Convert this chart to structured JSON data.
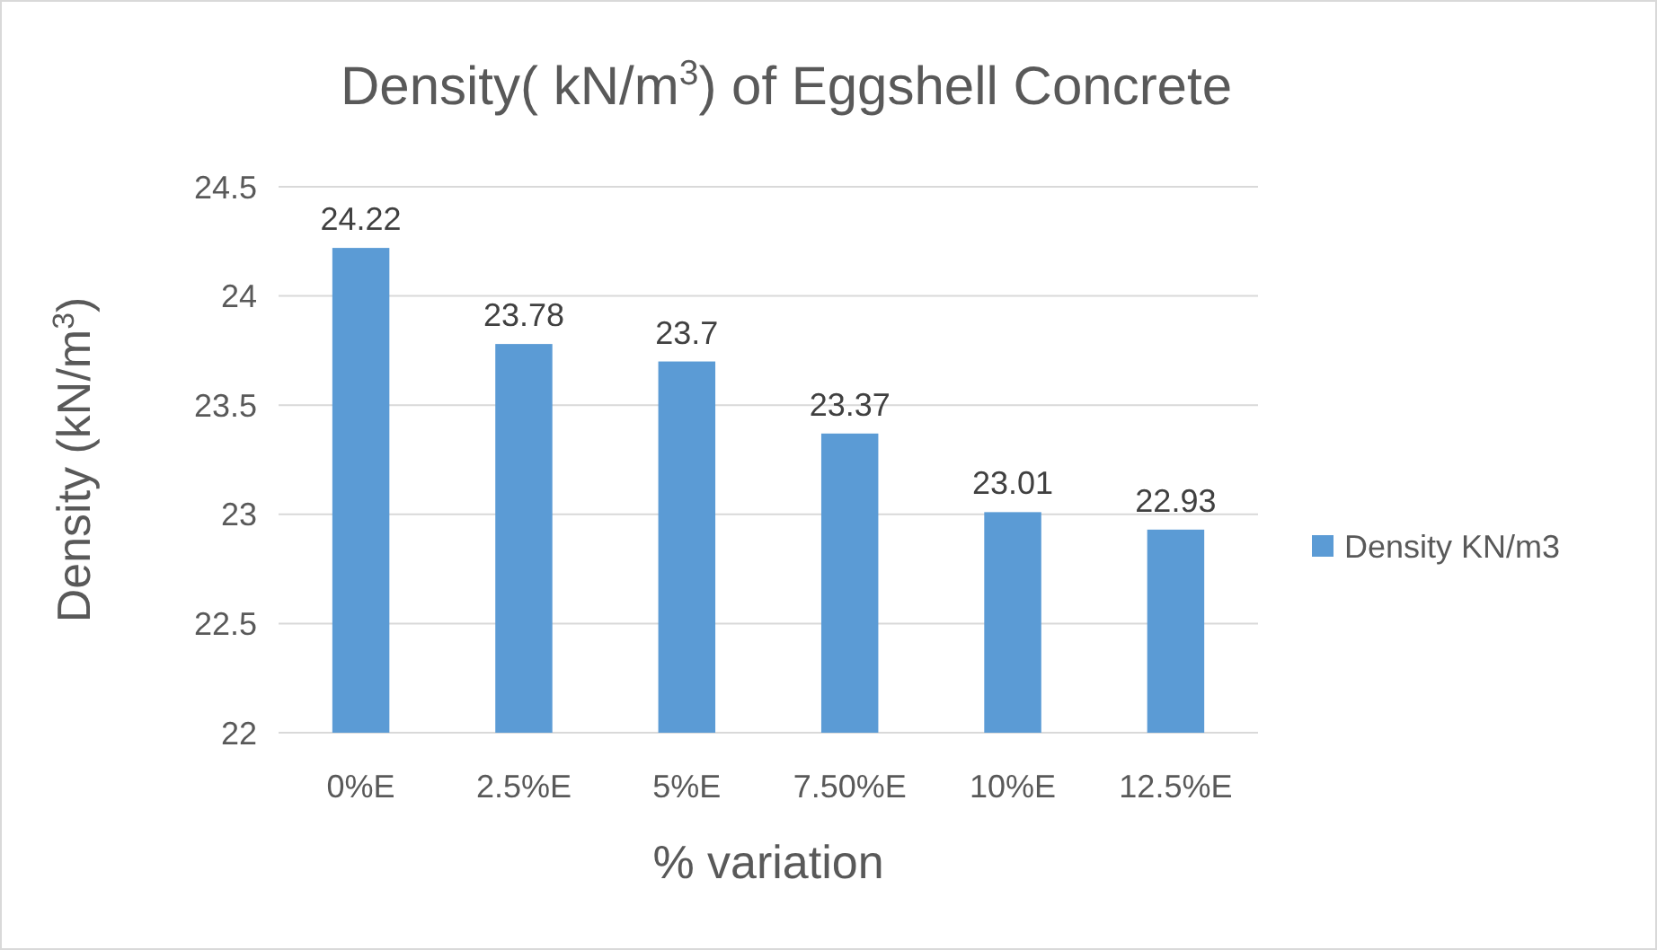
{
  "chart_data": {
    "type": "bar",
    "title": "Density( kN/m$^{3}$) of Eggshell Concrete",
    "xlabel": "% variation",
    "ylabel": "Density (kN/m$^{3}$)",
    "categories": [
      "0%E",
      "2.5%E",
      "5%E",
      "7.50%E",
      "10%E",
      "12.5%E"
    ],
    "series": [
      {
        "name": "Density KN/m3",
        "color": "#5b9bd5",
        "values": [
          24.22,
          23.78,
          23.7,
          23.37,
          23.01,
          22.93
        ]
      }
    ],
    "ylim": [
      22,
      24.5
    ],
    "yticks": [
      22,
      22.5,
      23,
      23.5,
      24,
      24.5
    ],
    "grid": "y",
    "legend": "right",
    "data_labels": true
  }
}
